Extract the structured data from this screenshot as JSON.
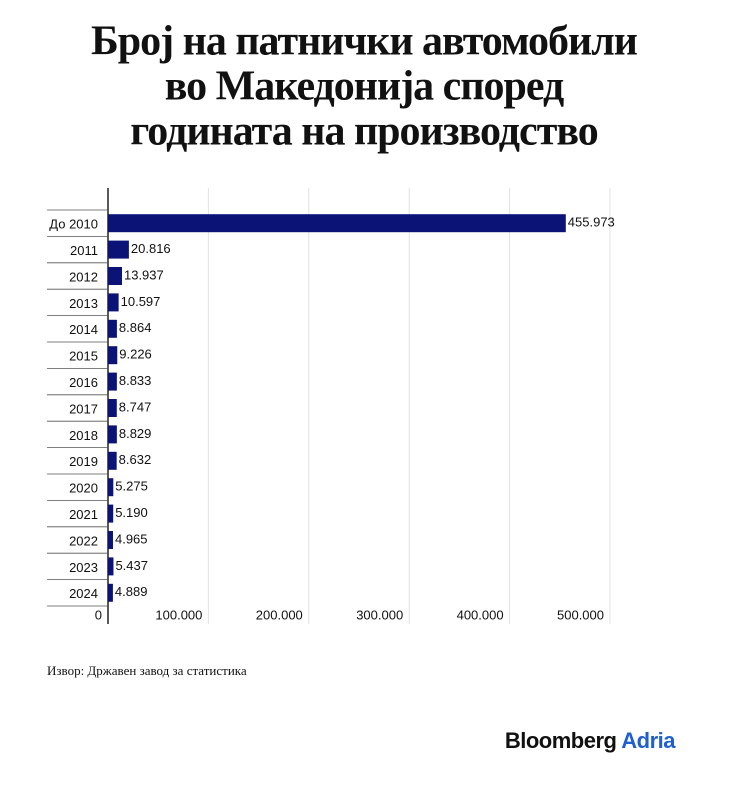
{
  "chart_data": {
    "type": "barh",
    "title": [
      "Број на патнички автомобили",
      "во Македонија според",
      "годината на производство"
    ],
    "categories": [
      "До 2010",
      "2011",
      "2012",
      "2013",
      "2014",
      "2015",
      "2016",
      "2017",
      "2018",
      "2019",
      "2020",
      "2021",
      "2022",
      "2023",
      "2024"
    ],
    "values": [
      455973,
      20816,
      13937,
      10597,
      8864,
      9226,
      8833,
      8747,
      8829,
      8632,
      5275,
      5190,
      4965,
      5437,
      4889
    ],
    "value_labels": [
      "455.973",
      "20.816",
      "13.937",
      "10.597",
      "8.864",
      "9.226",
      "8.833",
      "8.747",
      "8.829",
      "8.632",
      "5.275",
      "5.190",
      "4.965",
      "5.437",
      "4.889"
    ],
    "color": "#0b1476",
    "xlim": [
      0,
      500000
    ],
    "xticks": [
      0,
      {
        "value": 100000,
        "label": "100.000"
      },
      {
        "value": 200000,
        "label": "200.000"
      },
      {
        "value": 300000,
        "label": "300.000"
      },
      {
        "value": 400000,
        "label": "400.000"
      },
      {
        "value": 500000,
        "label": "500.000"
      }
    ],
    "grid": true,
    "source": "Извор: Државен завод за статистика",
    "logo": {
      "name": "Bloomberg",
      "suffix": "Adria"
    }
  }
}
